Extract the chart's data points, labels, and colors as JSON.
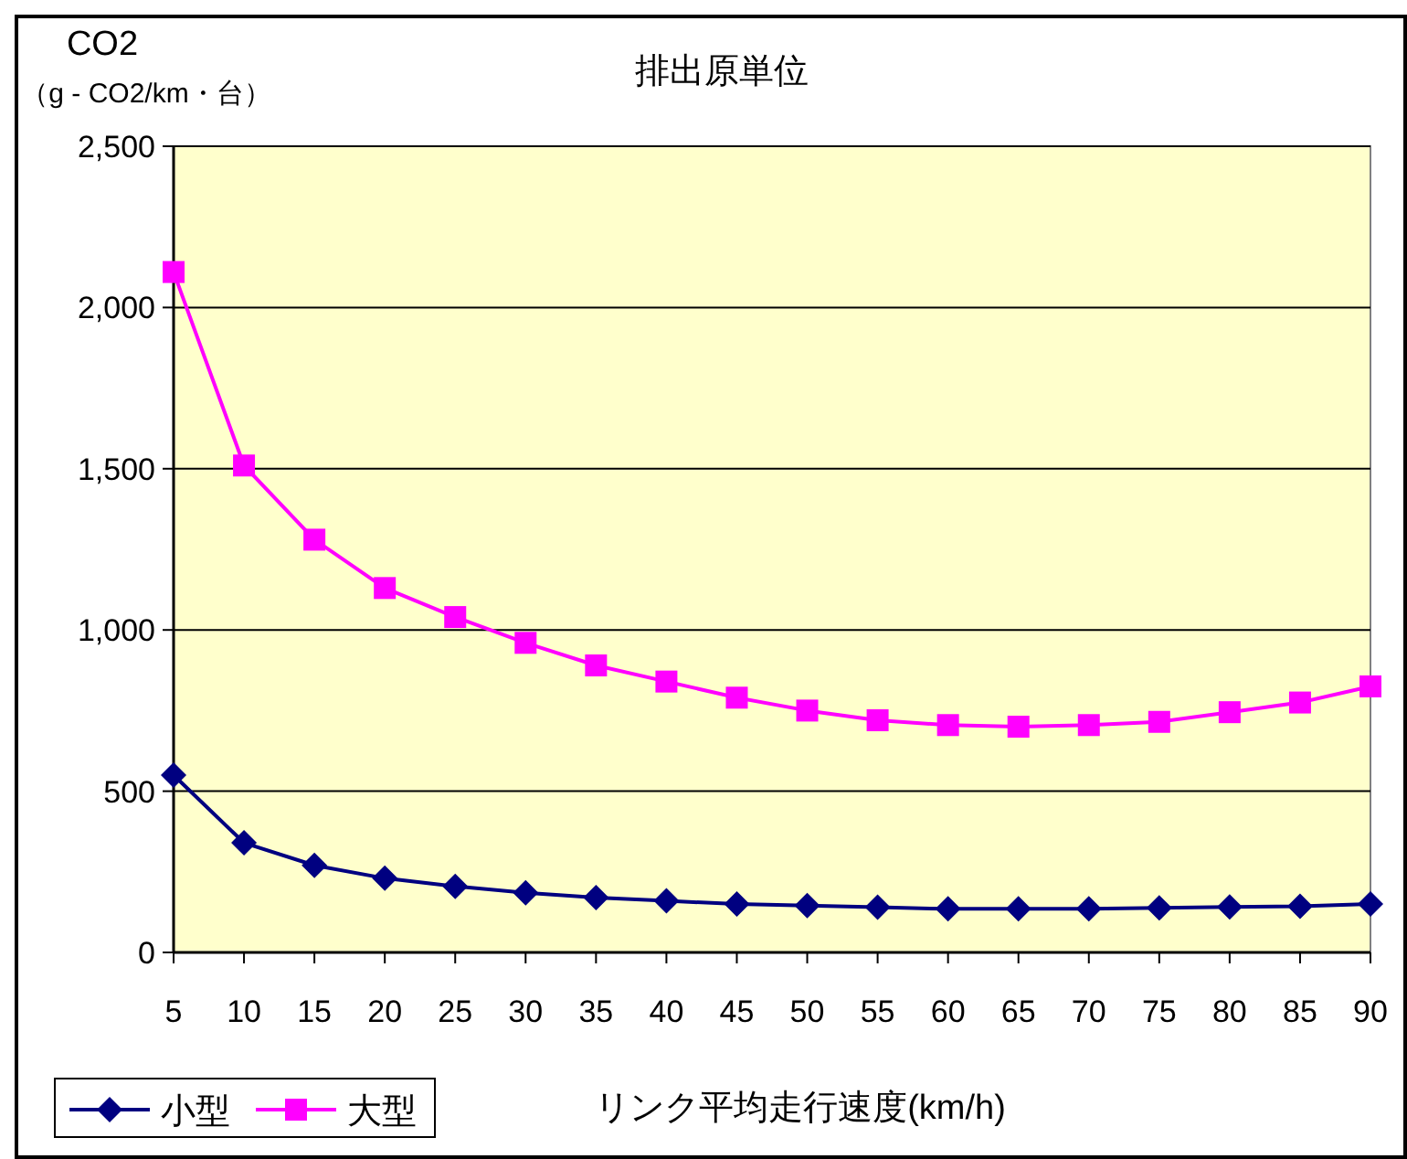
{
  "chart_data": {
    "type": "line",
    "title": "排出原単位",
    "ylabel": "CO2\n（g - CO2/km・台）",
    "xlabel": "リンク平均走行速度(km/h)",
    "x": [
      5,
      10,
      15,
      20,
      25,
      30,
      35,
      40,
      45,
      50,
      55,
      60,
      65,
      70,
      75,
      80,
      85,
      90
    ],
    "xlim": [
      5,
      90
    ],
    "xticks": [
      5,
      10,
      15,
      20,
      25,
      30,
      35,
      40,
      45,
      50,
      55,
      60,
      65,
      70,
      75,
      80,
      85,
      90
    ],
    "ylim": [
      0,
      2500
    ],
    "yticks": [
      {
        "value": 0,
        "label": "0"
      },
      {
        "value": 500,
        "label": "500"
      },
      {
        "value": 1000,
        "label": "1,000"
      },
      {
        "value": 1500,
        "label": "1,500"
      },
      {
        "value": 2000,
        "label": "2,000"
      },
      {
        "value": 2500,
        "label": "2,500"
      }
    ],
    "grid": "y",
    "legend": "bottom left",
    "series": [
      {
        "name": "小型",
        "color": "#000080",
        "marker": "diamond",
        "values": [
          550,
          340,
          270,
          230,
          205,
          185,
          170,
          160,
          150,
          145,
          140,
          135,
          135,
          135,
          138,
          141,
          143,
          150
        ]
      },
      {
        "name": "大型",
        "color": "#ff00ff",
        "marker": "square",
        "values": [
          2110,
          1510,
          1280,
          1130,
          1040,
          960,
          890,
          840,
          790,
          750,
          720,
          705,
          700,
          705,
          715,
          745,
          775,
          825
        ]
      }
    ]
  }
}
